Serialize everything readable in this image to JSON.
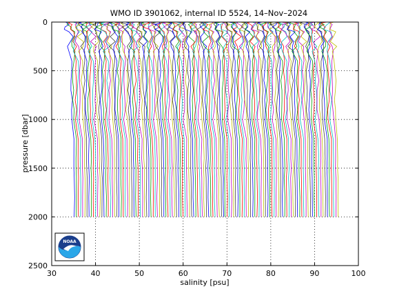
{
  "chart_data": {
    "type": "line",
    "title": "WMO ID 3901062, internal ID 5524, 14–Nov–2024",
    "xlabel": "salinity [psu]",
    "ylabel": "pressure [dbar]",
    "xlim": [
      30,
      100
    ],
    "ylim": [
      0,
      2500
    ],
    "y_reversed": true,
    "x_ticks": [
      30,
      40,
      50,
      60,
      70,
      80,
      90,
      100
    ],
    "y_ticks": [
      0,
      500,
      1000,
      1500,
      2000,
      2500
    ],
    "grid": "dotted",
    "offset_profiles": {
      "count": 125,
      "first_surface_salinity": 34.0,
      "spacing_psu": 0.485,
      "max_pressure": 2000,
      "colors": [
        "#0000ff",
        "#00a000",
        "#ff0000",
        "#00bfbf",
        "#bf00bf",
        "#bfbf00",
        "#404040"
      ]
    }
  },
  "logo": {
    "text": "NOAA"
  }
}
